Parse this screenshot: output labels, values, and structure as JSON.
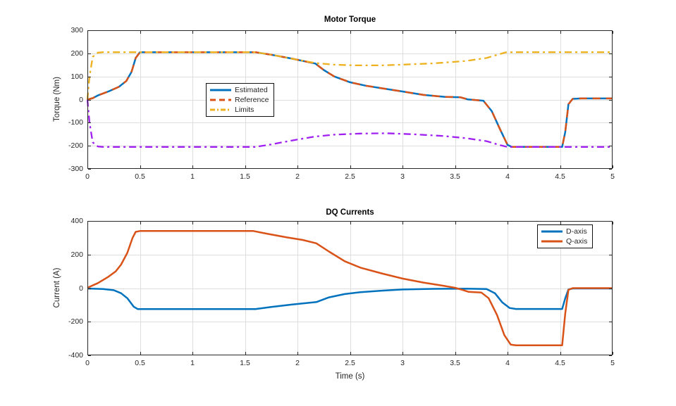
{
  "figure": {
    "background": "#ffffff",
    "axis_color": "#262626",
    "grid_color": "#dedede"
  },
  "chart_data": [
    {
      "id": "torque",
      "type": "line",
      "title": "Motor Torque",
      "xlabel": "",
      "ylabel": "Torque (Nm)",
      "xlim": [
        0,
        5
      ],
      "ylim": [
        -300,
        300
      ],
      "xtick_values": [
        0,
        0.5,
        1,
        1.5,
        2,
        2.5,
        3,
        3.5,
        4,
        4.5,
        5
      ],
      "xtick_labels": [
        "0",
        "0.5",
        "1",
        "1.5",
        "2",
        "2.5",
        "3",
        "3.5",
        "4",
        "4.5",
        "5"
      ],
      "ytick_values": [
        -300,
        -200,
        -100,
        0,
        100,
        200,
        300
      ],
      "ytick_labels": [
        "-300",
        "-200",
        "-100",
        "0",
        "100",
        "200",
        "300"
      ],
      "grid": true,
      "legend_position": "inside-left",
      "legend_entries": [
        {
          "label": "Estimated",
          "color": "#0072BD",
          "dash": "solid"
        },
        {
          "label": "Reference",
          "color": "#D95319",
          "dash": "dashed"
        },
        {
          "label": "Limits",
          "color": "#EDB120",
          "dash": "dashdot"
        }
      ],
      "series": [
        {
          "name": "Estimated",
          "color": "#0072BD",
          "dash": "solid",
          "width": 2.5,
          "points": [
            [
              0,
              0
            ],
            [
              0.05,
              6
            ],
            [
              0.1,
              18
            ],
            [
              0.2,
              35
            ],
            [
              0.3,
              55
            ],
            [
              0.37,
              80
            ],
            [
              0.42,
              120
            ],
            [
              0.46,
              180
            ],
            [
              0.5,
              205
            ],
            [
              1.6,
              205
            ],
            [
              1.75,
              194
            ],
            [
              1.95,
              177
            ],
            [
              2.17,
              156
            ],
            [
              2.25,
              128
            ],
            [
              2.35,
              100
            ],
            [
              2.5,
              75
            ],
            [
              2.65,
              60
            ],
            [
              2.8,
              49
            ],
            [
              3.0,
              35
            ],
            [
              3.2,
              20
            ],
            [
              3.4,
              12
            ],
            [
              3.55,
              10
            ],
            [
              3.62,
              1
            ],
            [
              3.7,
              -2
            ],
            [
              3.77,
              -5
            ],
            [
              3.85,
              -50
            ],
            [
              3.93,
              -130
            ],
            [
              4.0,
              -196
            ],
            [
              4.04,
              -205
            ],
            [
              4.52,
              -205
            ],
            [
              4.55,
              -140
            ],
            [
              4.58,
              -20
            ],
            [
              4.62,
              3
            ],
            [
              4.7,
              5
            ],
            [
              5,
              5
            ]
          ]
        },
        {
          "name": "Reference",
          "color": "#D95319",
          "dash": "dashed",
          "width": 2.5,
          "points": [
            [
              0,
              0
            ],
            [
              0.05,
              6
            ],
            [
              0.1,
              18
            ],
            [
              0.2,
              35
            ],
            [
              0.3,
              55
            ],
            [
              0.37,
              80
            ],
            [
              0.42,
              120
            ],
            [
              0.46,
              180
            ],
            [
              0.5,
              205
            ],
            [
              1.6,
              205
            ],
            [
              1.75,
              194
            ],
            [
              1.95,
              177
            ],
            [
              2.17,
              156
            ],
            [
              2.25,
              128
            ],
            [
              2.35,
              100
            ],
            [
              2.5,
              75
            ],
            [
              2.65,
              60
            ],
            [
              2.8,
              49
            ],
            [
              3.0,
              35
            ],
            [
              3.2,
              20
            ],
            [
              3.4,
              12
            ],
            [
              3.55,
              10
            ],
            [
              3.62,
              1
            ],
            [
              3.7,
              -2
            ],
            [
              3.77,
              -5
            ],
            [
              3.85,
              -50
            ],
            [
              3.93,
              -130
            ],
            [
              4.0,
              -196
            ],
            [
              4.04,
              -205
            ],
            [
              4.52,
              -205
            ],
            [
              4.55,
              -140
            ],
            [
              4.58,
              -20
            ],
            [
              4.62,
              3
            ],
            [
              4.7,
              5
            ],
            [
              5,
              5
            ]
          ]
        },
        {
          "name": "Limits-upper",
          "color": "#EDB120",
          "dash": "dashdot",
          "width": 2.3,
          "points": [
            [
              0,
              0
            ],
            [
              0.02,
              100
            ],
            [
              0.05,
              185
            ],
            [
              0.1,
              203
            ],
            [
              0.15,
              205
            ],
            [
              1.6,
              205
            ],
            [
              1.75,
              194
            ],
            [
              1.95,
              177
            ],
            [
              2.17,
              158
            ],
            [
              2.35,
              151
            ],
            [
              2.55,
              148
            ],
            [
              2.8,
              148
            ],
            [
              3.0,
              151
            ],
            [
              3.3,
              157
            ],
            [
              3.6,
              167
            ],
            [
              3.8,
              180
            ],
            [
              3.92,
              196
            ],
            [
              3.98,
              204
            ],
            [
              4.05,
              205
            ],
            [
              5,
              205
            ]
          ]
        },
        {
          "name": "Limits-lower",
          "color": "#A020F0",
          "dash": "dashdot",
          "width": 2.3,
          "points": [
            [
              0,
              0
            ],
            [
              0.02,
              -100
            ],
            [
              0.05,
              -185
            ],
            [
              0.1,
              -203
            ],
            [
              0.15,
              -205
            ],
            [
              1.6,
              -205
            ],
            [
              1.75,
              -194
            ],
            [
              1.95,
              -177
            ],
            [
              2.17,
              -160
            ],
            [
              2.35,
              -152
            ],
            [
              2.6,
              -147
            ],
            [
              2.85,
              -146
            ],
            [
              3.1,
              -150
            ],
            [
              3.4,
              -158
            ],
            [
              3.6,
              -167
            ],
            [
              3.8,
              -180
            ],
            [
              3.92,
              -196
            ],
            [
              4.0,
              -205
            ],
            [
              5,
              -205
            ]
          ]
        }
      ]
    },
    {
      "id": "dq-currents",
      "type": "line",
      "title": "DQ Currents",
      "xlabel": "Time (s)",
      "ylabel": "Current (A)",
      "xlim": [
        0,
        5
      ],
      "ylim": [
        -400,
        400
      ],
      "xtick_values": [
        0,
        0.5,
        1,
        1.5,
        2,
        2.5,
        3,
        3.5,
        4,
        4.5,
        5
      ],
      "xtick_labels": [
        "0",
        "0.5",
        "1",
        "1.5",
        "2",
        "2.5",
        "3",
        "3.5",
        "4",
        "4.5",
        "5"
      ],
      "ytick_values": [
        -400,
        -200,
        0,
        200,
        400
      ],
      "ytick_labels": [
        "-400",
        "-200",
        "0",
        "200",
        "400"
      ],
      "grid": true,
      "legend_position": "inside-right",
      "legend_entries": [
        {
          "label": "D-axis",
          "color": "#0072BD",
          "dash": "solid"
        },
        {
          "label": "Q-axis",
          "color": "#D95319",
          "dash": "solid"
        }
      ],
      "series": [
        {
          "name": "D-axis",
          "color": "#0072BD",
          "dash": "solid",
          "width": 2.5,
          "points": [
            [
              0,
              -2
            ],
            [
              0.15,
              -5
            ],
            [
              0.25,
              -12
            ],
            [
              0.32,
              -30
            ],
            [
              0.38,
              -60
            ],
            [
              0.44,
              -110
            ],
            [
              0.48,
              -125
            ],
            [
              1.6,
              -125
            ],
            [
              1.75,
              -112
            ],
            [
              1.95,
              -97
            ],
            [
              2.18,
              -83
            ],
            [
              2.3,
              -55
            ],
            [
              2.45,
              -35
            ],
            [
              2.6,
              -24
            ],
            [
              2.8,
              -15
            ],
            [
              3.0,
              -8
            ],
            [
              3.3,
              -4
            ],
            [
              3.6,
              -3
            ],
            [
              3.8,
              -5
            ],
            [
              3.88,
              -30
            ],
            [
              3.95,
              -85
            ],
            [
              4.02,
              -118
            ],
            [
              4.08,
              -124
            ],
            [
              4.52,
              -124
            ],
            [
              4.55,
              -60
            ],
            [
              4.58,
              -8
            ],
            [
              4.62,
              -2
            ],
            [
              5,
              -2
            ]
          ]
        },
        {
          "name": "Q-axis",
          "color": "#D95319",
          "dash": "solid",
          "width": 2.5,
          "points": [
            [
              0,
              2
            ],
            [
              0.1,
              30
            ],
            [
              0.2,
              68
            ],
            [
              0.27,
              100
            ],
            [
              0.32,
              140
            ],
            [
              0.38,
              210
            ],
            [
              0.43,
              300
            ],
            [
              0.46,
              335
            ],
            [
              0.5,
              340
            ],
            [
              1.58,
              340
            ],
            [
              1.7,
              325
            ],
            [
              1.9,
              302
            ],
            [
              2.05,
              287
            ],
            [
              2.18,
              267
            ],
            [
              2.3,
              218
            ],
            [
              2.45,
              160
            ],
            [
              2.6,
              122
            ],
            [
              2.8,
              88
            ],
            [
              3.0,
              57
            ],
            [
              3.2,
              33
            ],
            [
              3.4,
              13
            ],
            [
              3.5,
              2
            ],
            [
              3.57,
              -10
            ],
            [
              3.63,
              -22
            ],
            [
              3.75,
              -26
            ],
            [
              3.82,
              -60
            ],
            [
              3.9,
              -160
            ],
            [
              3.97,
              -280
            ],
            [
              4.03,
              -336
            ],
            [
              4.08,
              -340
            ],
            [
              4.52,
              -340
            ],
            [
              4.55,
              -150
            ],
            [
              4.58,
              -10
            ],
            [
              4.62,
              0
            ],
            [
              5,
              0
            ]
          ]
        }
      ]
    }
  ]
}
